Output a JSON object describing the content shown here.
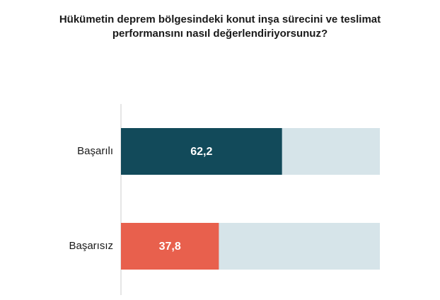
{
  "chart_data": {
    "type": "bar",
    "orientation": "horizontal",
    "stacked_100": true,
    "title_lines": [
      "Hükümetin deprem bölgesindeki konut inşa sürecini ve teslimat",
      "performansını nasıl değerlendiriyorsunuz?"
    ],
    "categories": [
      "Başarılı",
      "Başarısız"
    ],
    "values": [
      62.2,
      37.8
    ],
    "value_labels": [
      "62,2",
      "37,8"
    ],
    "xlim": [
      0,
      100
    ],
    "grid": false,
    "legend": "none",
    "colors": {
      "bars": [
        "#124a5a",
        "#e8604d"
      ],
      "track": "#d6e4e9",
      "axis": "#cccccc"
    }
  }
}
